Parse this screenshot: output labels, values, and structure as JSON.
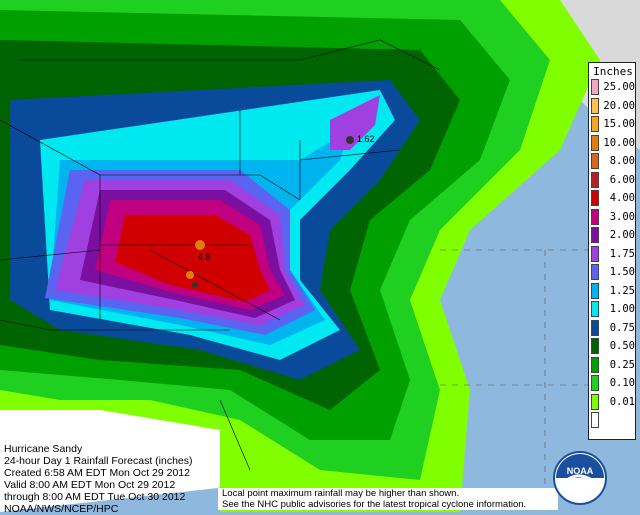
{
  "legend": {
    "title": "Inches",
    "levels": [
      {
        "label": "25.00",
        "color": "#f4a7c0"
      },
      {
        "label": "20.00",
        "color": "#ffc04d"
      },
      {
        "label": "15.00",
        "color": "#f5a623"
      },
      {
        "label": "10.00",
        "color": "#e07d10"
      },
      {
        "label": "8.00",
        "color": "#d2691e"
      },
      {
        "label": "6.00",
        "color": "#b22222"
      },
      {
        "label": "4.00",
        "color": "#d10000"
      },
      {
        "label": "3.00",
        "color": "#c00080"
      },
      {
        "label": "2.00",
        "color": "#7a0fa0"
      },
      {
        "label": "1.75",
        "color": "#a040e0"
      },
      {
        "label": "1.50",
        "color": "#5a64f0"
      },
      {
        "label": "1.25",
        "color": "#00b4f0"
      },
      {
        "label": "1.00",
        "color": "#00e8f0"
      },
      {
        "label": "0.75",
        "color": "#0a4a9a"
      },
      {
        "label": "0.50",
        "color": "#006400"
      },
      {
        "label": "0.25",
        "color": "#00a000"
      },
      {
        "label": "0.10",
        "color": "#20d020"
      },
      {
        "label": "0.01",
        "color": "#80ff00"
      },
      {
        "label": "",
        "color": "#ffffff"
      }
    ]
  },
  "info": {
    "line1": "Hurricane Sandy",
    "line2": "24-hour Day 1 Rainfall Forecast (inches)",
    "line3": "Created 6:58 AM EDT Mon Oct 29 2012",
    "line4": "Valid 8:00 AM EDT Mon Oct 29 2012",
    "line5": "through 8:00 AM EDT Tue Oct 30 2012",
    "line6": "NOAA/NWS/NCEP/HPC"
  },
  "note": {
    "line1": "Local point maximum rainfall may be higher than shown.",
    "line2": "See the NHC public advisories for the latest tropical cyclone information."
  },
  "peaks": [
    {
      "label": "1.62"
    },
    {
      "label": "4.8"
    }
  ],
  "logo": {
    "text": "NOAA"
  }
}
